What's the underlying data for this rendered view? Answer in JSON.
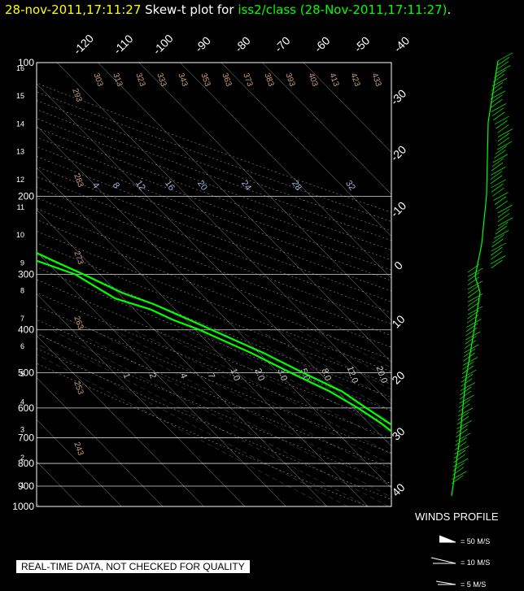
{
  "header": {
    "timestamp": "28-nov-2011,17:11:27",
    "plot_label": " Skew-t plot for ",
    "source": "iss2/class (28-Nov-2011,17:11:27)",
    "trail": "."
  },
  "colors": {
    "timestamp": "#ffff00",
    "text": "#ffffff",
    "source": "#00ff00",
    "trace": "#00ff00",
    "grid": "#ffffff",
    "dry_adiabat_label": "#c8a080",
    "mixing_label": "#9ab8e0",
    "moist_label": "#c8c8c8"
  },
  "notice": "REAL-TIME DATA, NOT CHECKED FOR QUALITY",
  "winds": {
    "title": "WINDS PROFILE",
    "key": [
      "= 50 M/S",
      "= 10 M/S",
      "= 5 M/S"
    ]
  },
  "chart_data": {
    "type": "skew-t",
    "pressure_levels": [
      100,
      200,
      300,
      400,
      500,
      600,
      700,
      800,
      900,
      1000
    ],
    "height_km_ticks": [
      "1",
      "2",
      "3",
      "4",
      "5",
      "6",
      "7",
      "8",
      "9",
      "10",
      "11",
      "12",
      "13",
      "14",
      "15",
      "16"
    ],
    "top_temp_labels": [
      "-120",
      "-110",
      "-100",
      "-90",
      "-80",
      "-70",
      "-60",
      "-50",
      "-40"
    ],
    "right_temp_labels": [
      "-30",
      "-20",
      "-10",
      "0",
      "10",
      "20",
      "30",
      "40"
    ],
    "dry_adiabat_labels": [
      "293",
      "303",
      "313",
      "323",
      "333",
      "343",
      "353",
      "363",
      "373",
      "383",
      "393",
      "403",
      "413",
      "423",
      "433",
      "283",
      "273",
      "263",
      "253",
      "243"
    ],
    "mixing_ratio_labels_high": [
      "4",
      "8",
      "12",
      "16",
      "20",
      "24",
      "28",
      "32"
    ],
    "mixing_ratio_labels_low": [
      ".1",
      ".2",
      ".4",
      ".7",
      "1.0",
      "2.0",
      "3.0",
      "5.0",
      "8.0",
      "12.0",
      "20.0"
    ],
    "temperature": [
      [
        1000,
        9
      ],
      [
        975,
        6
      ],
      [
        950,
        3
      ],
      [
        925,
        2
      ],
      [
        900,
        0
      ],
      [
        875,
        -1
      ],
      [
        850,
        -3
      ],
      [
        800,
        -3
      ],
      [
        780,
        -1
      ],
      [
        760,
        -3
      ],
      [
        720,
        -5
      ],
      [
        700,
        -3
      ],
      [
        650,
        -5
      ],
      [
        600,
        -7
      ],
      [
        550,
        -9
      ],
      [
        500,
        -14
      ],
      [
        450,
        -19
      ],
      [
        400,
        -26
      ],
      [
        380,
        -29
      ],
      [
        350,
        -34
      ],
      [
        330,
        -39
      ],
      [
        300,
        -44
      ],
      [
        280,
        -48
      ],
      [
        260,
        -52
      ],
      [
        240,
        -57
      ],
      [
        220,
        -62
      ],
      [
        200,
        -66
      ],
      [
        180,
        -70
      ],
      [
        160,
        -75
      ],
      [
        150,
        -78
      ],
      [
        140,
        -80
      ],
      [
        130,
        -79
      ],
      [
        120,
        -80
      ],
      [
        110,
        -83
      ],
      [
        100,
        -84
      ]
    ],
    "dewpoint": [
      [
        1000,
        7
      ],
      [
        975,
        4
      ],
      [
        950,
        2
      ],
      [
        925,
        0
      ],
      [
        900,
        -2
      ],
      [
        875,
        -3
      ],
      [
        850,
        -4
      ],
      [
        800,
        -6
      ],
      [
        780,
        -3
      ],
      [
        760,
        -6
      ],
      [
        720,
        -7
      ],
      [
        700,
        -6
      ],
      [
        650,
        -7
      ],
      [
        600,
        -9
      ],
      [
        550,
        -12
      ],
      [
        500,
        -17
      ],
      [
        450,
        -22
      ],
      [
        400,
        -29
      ],
      [
        380,
        -33
      ],
      [
        360,
        -36
      ],
      [
        340,
        -42
      ],
      [
        320,
        -44
      ],
      [
        300,
        -46
      ],
      [
        280,
        -52
      ],
      [
        260,
        -58
      ],
      [
        250,
        -59
      ],
      [
        240,
        -62
      ],
      [
        230,
        -63
      ],
      [
        220,
        -67
      ],
      [
        200,
        -70
      ],
      [
        180,
        -76
      ],
      [
        170,
        -79
      ],
      [
        160,
        -81
      ],
      [
        150,
        -82
      ],
      [
        140,
        -83
      ],
      [
        130,
        -86
      ],
      [
        120,
        -87
      ],
      [
        110,
        -87
      ],
      [
        100,
        -88
      ]
    ]
  }
}
